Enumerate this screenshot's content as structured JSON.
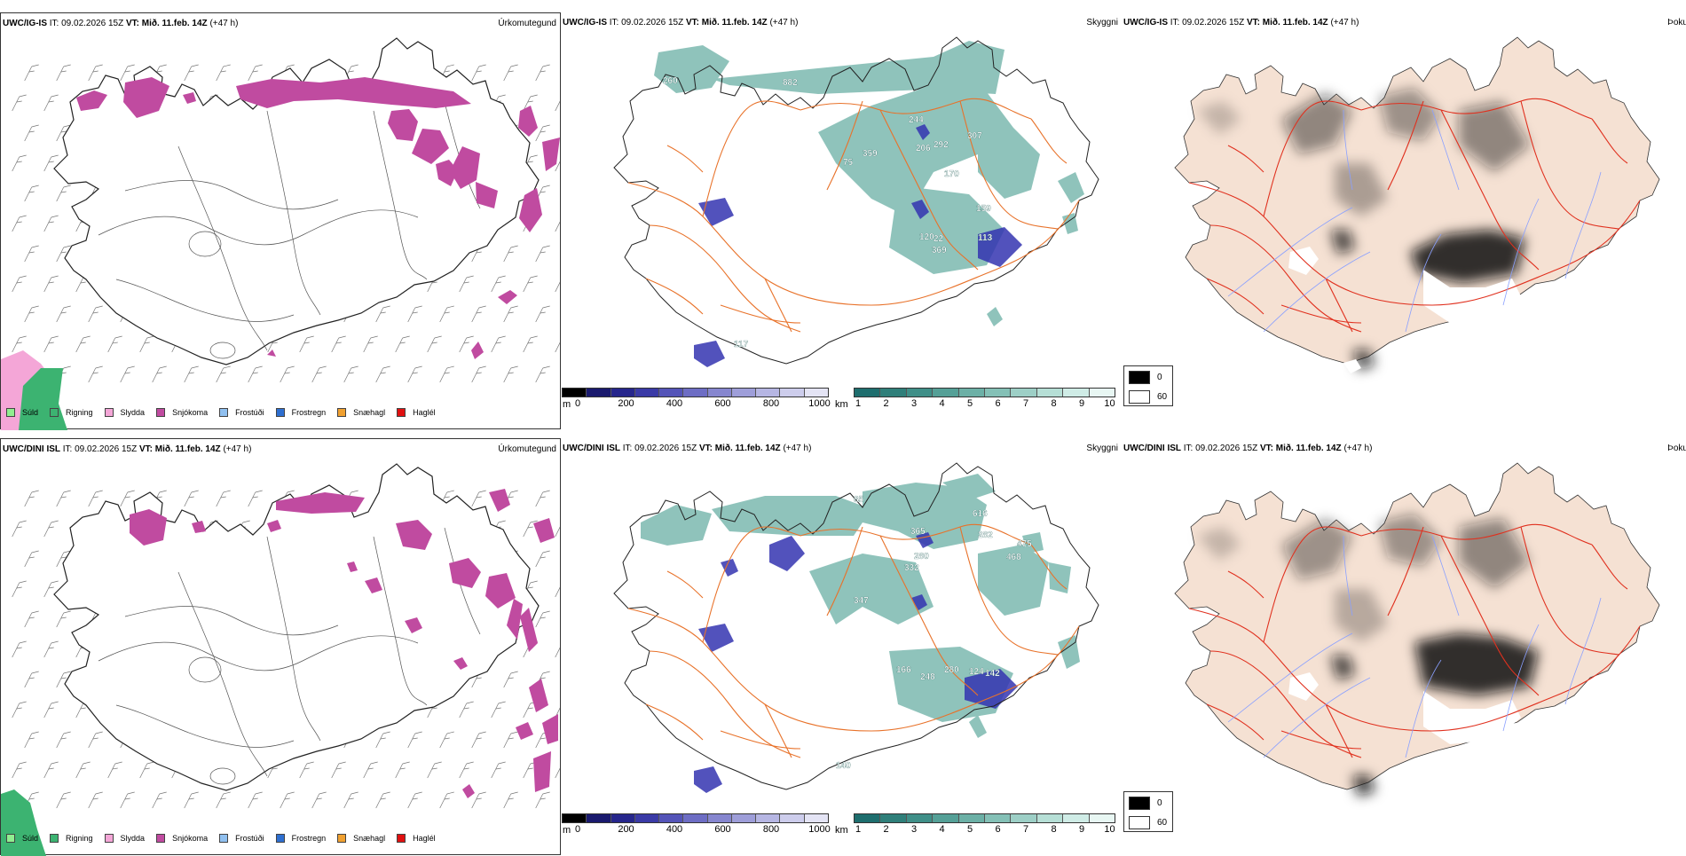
{
  "rows": [
    {
      "model": "UWC/IG-IS",
      "it_label": "IT:",
      "it_value": "09.02.2026 15Z",
      "vt_label": "VT:",
      "vt_value": "Mið. 11.feb. 14Z",
      "lead": "(+47 h)",
      "precip_title": "Úrkomutegund",
      "cloud_title": "Skyggni",
      "fog_title": "Þokuábendi",
      "cloud_labels": [
        "260",
        "882",
        "244",
        "75",
        "359",
        "206",
        "292",
        "307",
        "170",
        "159",
        "120",
        "22",
        "113",
        "369",
        "117"
      ]
    },
    {
      "model": "UWC/DINI ISL",
      "it_label": "IT:",
      "it_value": "09.02.2026 15Z",
      "vt_label": "VT:",
      "vt_value": "Mið. 11.feb. 14Z",
      "lead": "(+47 h)",
      "precip_title": "Úrkomutegund",
      "cloud_title": "Skyggni",
      "fog_title": "Þokuábendi",
      "cloud_labels": [
        "85",
        "616",
        "365",
        "282",
        "475",
        "280",
        "332",
        "468",
        "347",
        "166",
        "280",
        "248",
        "124",
        "142",
        "140"
      ]
    }
  ],
  "precip_legend": [
    {
      "label": "Súld",
      "color": "#90ee90"
    },
    {
      "label": "Rigning",
      "color": "#3cb371"
    },
    {
      "label": "Slydda",
      "color": "#f4a6d7"
    },
    {
      "label": "Snjókoma",
      "color": "#c04ba0"
    },
    {
      "label": "Frostúði",
      "color": "#90c0f0"
    },
    {
      "label": "Frostregn",
      "color": "#2e6fd0"
    },
    {
      "label": "Snæhagl",
      "color": "#f0a030"
    },
    {
      "label": "Haglél",
      "color": "#e01010"
    }
  ],
  "ceiling_bar": {
    "unit": "m",
    "ticks": [
      "0",
      "200",
      "400",
      "600",
      "800",
      "1000"
    ],
    "colors": [
      "#000000",
      "#1a1a6e",
      "#26268c",
      "#3a3aa6",
      "#5454b8",
      "#6d6dc4",
      "#8686cf",
      "#9e9ed9",
      "#b6b6e3",
      "#cdcdec",
      "#e4e4f5"
    ]
  },
  "visibility_bar": {
    "unit": "km",
    "ticks": [
      "1",
      "2",
      "3",
      "4",
      "5",
      "6",
      "7",
      "8",
      "9",
      "10"
    ],
    "colors": [
      "#1e6e6e",
      "#2f7f7a",
      "#3f8f88",
      "#55a097",
      "#6cb0a6",
      "#84c0b6",
      "#9dcfc6",
      "#b6dfd6",
      "#cfece6",
      "#e8f7f3"
    ]
  },
  "fog_legend": [
    {
      "value": "0",
      "color": "#000000"
    },
    {
      "value": "60",
      "color": "#ffffff"
    }
  ],
  "colors": {
    "land_fog": "#f5e1d3",
    "road": "#e8722a",
    "road_red": "#e0301e",
    "snow": "#c04ba0",
    "teal": "#5fa99e",
    "dark_blue": "#3434b0",
    "river": "#8aa0ff"
  }
}
